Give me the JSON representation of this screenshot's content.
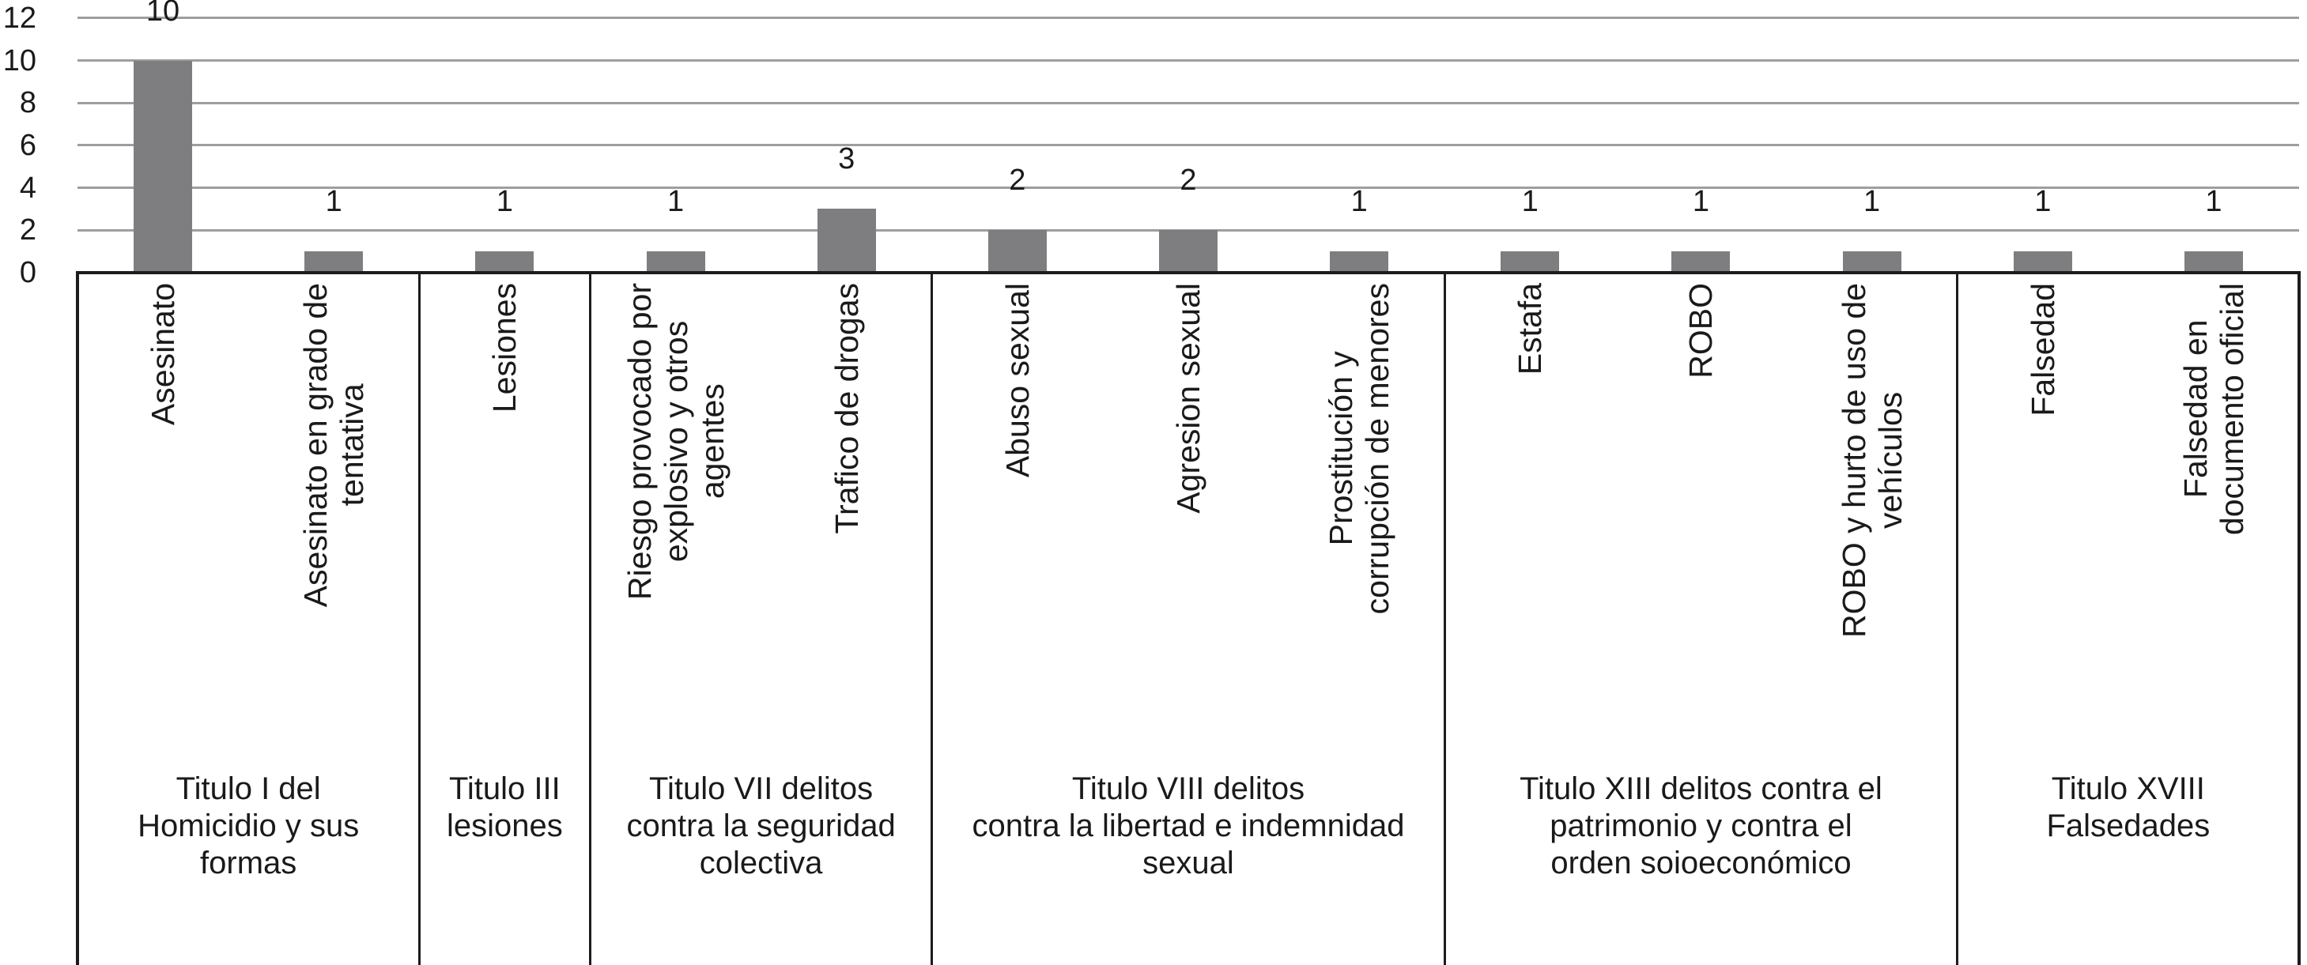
{
  "chart_data": {
    "type": "bar",
    "title": "",
    "xlabel": "",
    "ylabel": "",
    "ylim": [
      0,
      12
    ],
    "yticks": [
      0,
      2,
      4,
      6,
      8,
      10,
      12
    ],
    "grid": "horizontal",
    "legend": "none",
    "values": [
      10,
      1,
      1,
      1,
      3,
      2,
      2,
      1,
      1,
      1,
      1,
      1,
      1
    ],
    "value_labels": [
      "10",
      "1",
      "1",
      "1",
      "3",
      "2",
      "2",
      "1",
      "1",
      "1",
      "1",
      "1",
      "1"
    ],
    "categories": [
      "Asesinato",
      "Asesinato en grado de\ntentativa",
      "Lesiones",
      "Riesgo provocado por\nexplosivo y otros\nagentes",
      "Trafico de drogas",
      "Abuso sexual",
      "Agresion sexual",
      "Prostitución y\ncorrupción de menores",
      "Estafa",
      "ROBO",
      "ROBO y hurto de uso de\nvehículos",
      "Falsedad",
      "Falsedad en\ndocumento oficial"
    ],
    "groups": [
      {
        "title": "Titulo I del\nHomicidio y sus\nformas",
        "cols": 2
      },
      {
        "title": "Titulo III\nlesiones",
        "cols": 1
      },
      {
        "title": "Titulo VII delitos\ncontra la seguridad\ncolectiva",
        "cols": 2
      },
      {
        "title": "Titulo VIII delitos\ncontra la libertad e indemnidad\nsexual",
        "cols": 3
      },
      {
        "title": "Titulo XIII delitos contra el\npatrimonio y contra el\norden soioeconómico",
        "cols": 3
      },
      {
        "title": "Titulo XVIII\nFalsedades",
        "cols": 2
      }
    ],
    "colors": {
      "bar": "#7e7e81",
      "gridline": "#9e9e9e",
      "axis_border": "#1c1c1c",
      "text": "#1a1a1a",
      "background": "#ffffff"
    }
  }
}
